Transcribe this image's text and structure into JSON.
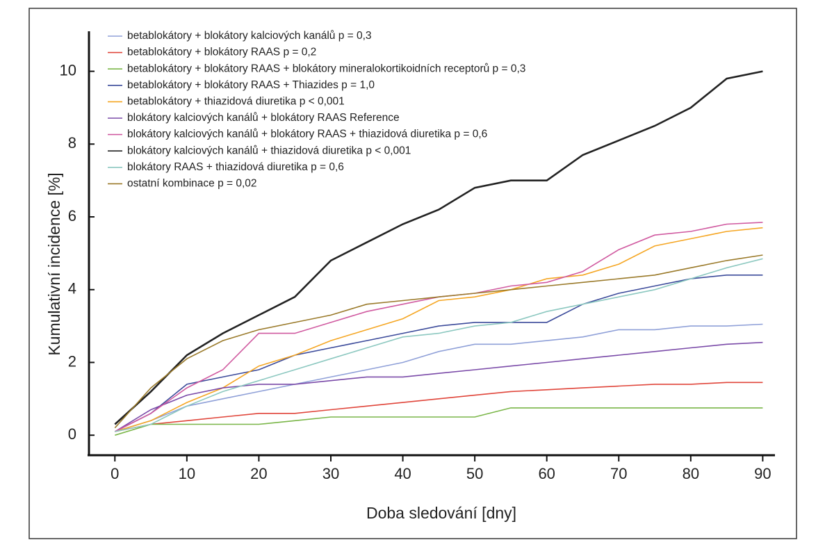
{
  "chart_data": {
    "type": "line",
    "xlabel": "Doba sledování [dny]",
    "ylabel": "Kumulativní incidence [%]",
    "x": [
      0,
      5,
      10,
      15,
      20,
      25,
      30,
      35,
      40,
      45,
      50,
      55,
      60,
      65,
      70,
      75,
      80,
      85,
      90
    ],
    "xlim": [
      -3.6,
      91.7
    ],
    "ylim": [
      -0.55,
      11.1
    ],
    "xticks": [
      0,
      10,
      20,
      30,
      40,
      50,
      60,
      70,
      80,
      90
    ],
    "yticks": [
      0,
      2,
      4,
      6,
      8,
      10
    ],
    "legend": "upper left",
    "series": [
      {
        "name": "betablokátory + blokátory kalciových kanálů p = 0,3",
        "color": "#8fa0d8",
        "values": [
          0.1,
          0.4,
          0.8,
          1.0,
          1.2,
          1.4,
          1.6,
          1.8,
          2.0,
          2.3,
          2.5,
          2.5,
          2.6,
          2.7,
          2.9,
          2.9,
          3.0,
          3.0,
          3.05
        ]
      },
      {
        "name": "betablokátory + blokátory RAAS p = 0,2",
        "color": "#e0453a",
        "values": [
          0.1,
          0.3,
          0.4,
          0.5,
          0.6,
          0.6,
          0.7,
          0.8,
          0.9,
          1.0,
          1.1,
          1.2,
          1.25,
          1.3,
          1.35,
          1.4,
          1.4,
          1.45,
          1.45
        ]
      },
      {
        "name": "betablokátory + blokátory RAAS + blokátory mineralokortikoidních receptorů p = 0,3",
        "color": "#7ab648",
        "values": [
          0.0,
          0.3,
          0.3,
          0.3,
          0.3,
          0.4,
          0.5,
          0.5,
          0.5,
          0.5,
          0.5,
          0.75,
          0.75,
          0.75,
          0.75,
          0.75,
          0.75,
          0.75,
          0.75
        ]
      },
      {
        "name": "betablokátory + blokátory RAAS + Thiazides p = 1,0",
        "color": "#3b4a9a",
        "values": [
          0.1,
          0.6,
          1.4,
          1.6,
          1.8,
          2.2,
          2.4,
          2.6,
          2.8,
          3.0,
          3.1,
          3.1,
          3.1,
          3.6,
          3.9,
          4.1,
          4.3,
          4.4,
          4.4
        ]
      },
      {
        "name": "betablokátory + thiazidová diuretika p < 0,001",
        "color": "#f5a623",
        "values": [
          0.1,
          0.4,
          0.9,
          1.3,
          1.9,
          2.2,
          2.6,
          2.9,
          3.2,
          3.7,
          3.8,
          4.0,
          4.3,
          4.4,
          4.7,
          5.2,
          5.4,
          5.6,
          5.7
        ]
      },
      {
        "name": "blokátory kalciových kanálů + blokátory RAAS Reference",
        "color": "#7a4aa8",
        "values": [
          0.1,
          0.7,
          1.1,
          1.3,
          1.4,
          1.4,
          1.5,
          1.6,
          1.6,
          1.7,
          1.8,
          1.9,
          2.0,
          2.1,
          2.2,
          2.3,
          2.4,
          2.5,
          2.55
        ]
      },
      {
        "name": "blokátory kalciových kanálů + blokátory RAAS + thiazidová diuretika p = 0,6",
        "color": "#d05aa0",
        "values": [
          0.1,
          0.6,
          1.3,
          1.8,
          2.8,
          2.8,
          3.1,
          3.4,
          3.6,
          3.8,
          3.9,
          4.1,
          4.2,
          4.5,
          5.1,
          5.5,
          5.6,
          5.8,
          5.85
        ]
      },
      {
        "name": "blokátory kalciových kanálů + thiazidová diuretika p < 0,001",
        "color": "#222222",
        "values": [
          0.3,
          1.2,
          2.2,
          2.8,
          3.3,
          3.8,
          4.8,
          5.3,
          5.8,
          6.2,
          6.8,
          7.0,
          7.0,
          7.7,
          8.1,
          8.5,
          9.0,
          9.8,
          10.0
        ]
      },
      {
        "name": "blokátory RAAS + thiazidová diuretika p = 0,6",
        "color": "#8cc8c0",
        "values": [
          0.1,
          0.3,
          0.8,
          1.2,
          1.5,
          1.8,
          2.1,
          2.4,
          2.7,
          2.8,
          3.0,
          3.1,
          3.4,
          3.6,
          3.8,
          4.0,
          4.3,
          4.6,
          4.85
        ]
      },
      {
        "name": "ostatní kombinace p = 0,02",
        "color": "#9a7a2a",
        "values": [
          0.2,
          1.3,
          2.1,
          2.6,
          2.9,
          3.1,
          3.3,
          3.6,
          3.7,
          3.8,
          3.9,
          4.0,
          4.1,
          4.2,
          4.3,
          4.4,
          4.6,
          4.8,
          4.95
        ]
      }
    ]
  }
}
